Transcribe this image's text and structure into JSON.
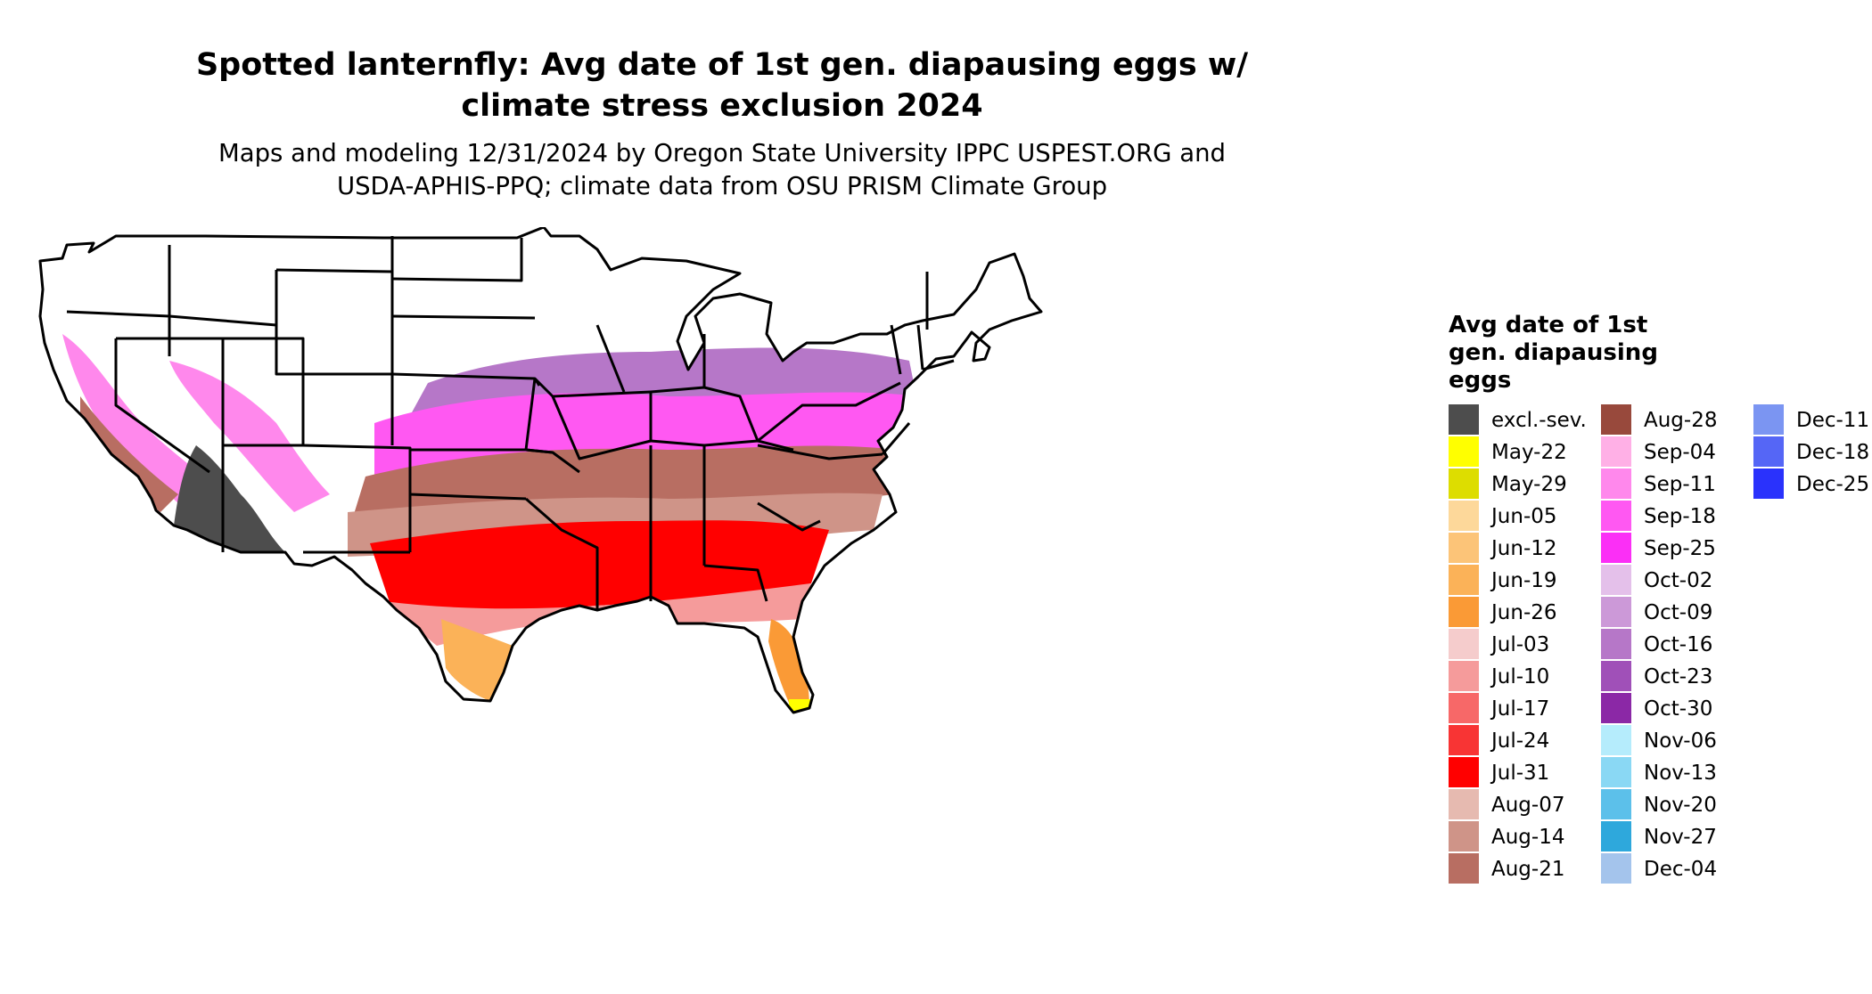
{
  "title_line1": "Spotted lanternfly: Avg date of 1st gen. diapausing eggs w/",
  "title_line2": "climate stress exclusion 2024",
  "subtitle_line1": "Maps and modeling 12/31/2024 by Oregon State University IPPC USPEST.ORG and",
  "subtitle_line2": "USDA-APHIS-PPQ; climate data from OSU PRISM Climate Group",
  "legend": {
    "title_line1": "Avg date of 1st",
    "title_line2": "gen. diapausing",
    "title_line3": "eggs",
    "items": [
      {
        "label": "excl.-sev.",
        "color": "#4d4d4d"
      },
      {
        "label": "May-22",
        "color": "#ffff00"
      },
      {
        "label": "May-29",
        "color": "#dddd00"
      },
      {
        "label": "Jun-05",
        "color": "#fdd89a"
      },
      {
        "label": "Jun-12",
        "color": "#fcc478"
      },
      {
        "label": "Jun-19",
        "color": "#fbb258"
      },
      {
        "label": "Jun-26",
        "color": "#fa9a36"
      },
      {
        "label": "Jul-03",
        "color": "#f5cccc"
      },
      {
        "label": "Jul-10",
        "color": "#f59b9b"
      },
      {
        "label": "Jul-17",
        "color": "#f76868"
      },
      {
        "label": "Jul-24",
        "color": "#f83434"
      },
      {
        "label": "Jul-31",
        "color": "#ff0000"
      },
      {
        "label": "Aug-07",
        "color": "#e6bab0"
      },
      {
        "label": "Aug-14",
        "color": "#cf9488"
      },
      {
        "label": "Aug-21",
        "color": "#b86e62"
      },
      {
        "label": "Aug-28",
        "color": "#98493c"
      },
      {
        "label": "Sep-04",
        "color": "#ffb0e6"
      },
      {
        "label": "Sep-11",
        "color": "#ff88ec"
      },
      {
        "label": "Sep-18",
        "color": "#ff58f2"
      },
      {
        "label": "Sep-25",
        "color": "#fb2ff6"
      },
      {
        "label": "Oct-02",
        "color": "#e4c0ea"
      },
      {
        "label": "Oct-09",
        "color": "#cc99d8"
      },
      {
        "label": "Oct-16",
        "color": "#b677c8"
      },
      {
        "label": "Oct-23",
        "color": "#a050b8"
      },
      {
        "label": "Oct-30",
        "color": "#8b28a6"
      },
      {
        "label": "Nov-06",
        "color": "#b5ecfc"
      },
      {
        "label": "Nov-13",
        "color": "#8ad8f4"
      },
      {
        "label": "Nov-20",
        "color": "#5cc0ea"
      },
      {
        "label": "Nov-27",
        "color": "#2ea8dc"
      },
      {
        "label": "Dec-04",
        "color": "#a4c4ec"
      },
      {
        "label": "Dec-11",
        "color": "#7b95f2"
      },
      {
        "label": "Dec-18",
        "color": "#5566f6"
      },
      {
        "label": "Dec-25",
        "color": "#2a32fc"
      }
    ]
  }
}
